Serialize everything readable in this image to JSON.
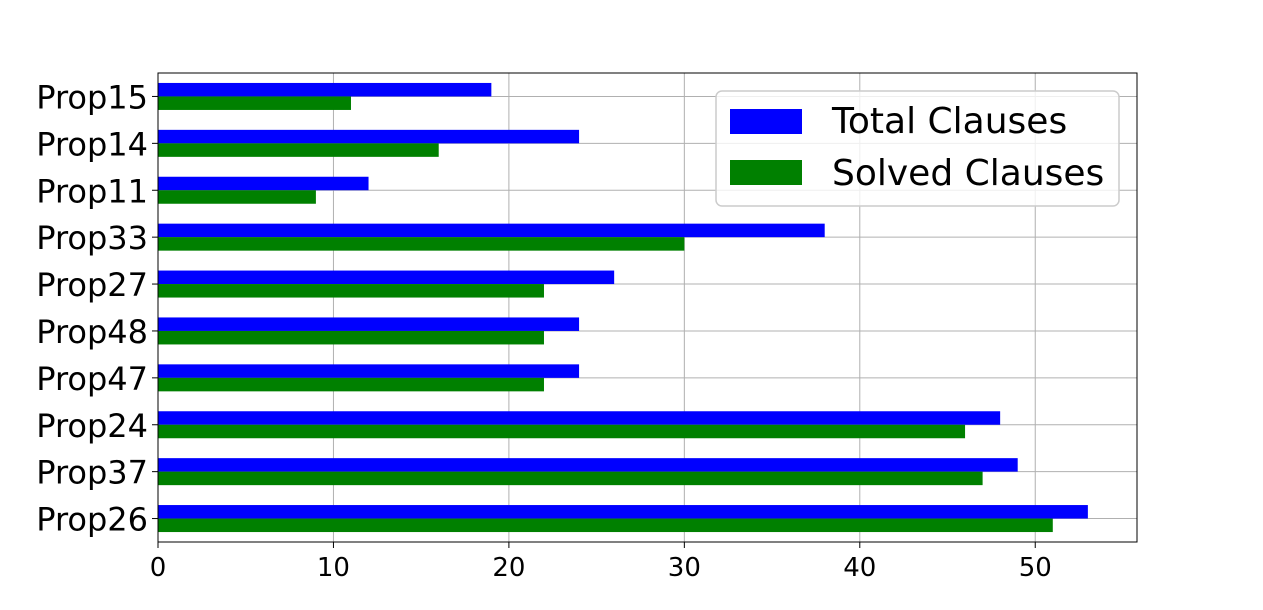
{
  "chart_data": {
    "type": "bar",
    "orientation": "horizontal",
    "categories": [
      "Prop15",
      "Prop14",
      "Prop11",
      "Prop33",
      "Prop27",
      "Prop48",
      "Prop47",
      "Prop24",
      "Prop37",
      "Prop26"
    ],
    "series": [
      {
        "name": "Total Clauses",
        "color": "#0000ff",
        "values": [
          19,
          24,
          12,
          38,
          26,
          24,
          24,
          48,
          49,
          53
        ]
      },
      {
        "name": "Solved Clauses",
        "color": "#008000",
        "values": [
          11,
          16,
          9,
          30,
          22,
          22,
          22,
          46,
          47,
          51
        ]
      }
    ],
    "title": "",
    "xlabel": "",
    "ylabel": "",
    "xlim": [
      0,
      55.8
    ],
    "xticks": [
      "0",
      "10",
      "20",
      "30",
      "40",
      "50"
    ],
    "grid": true,
    "legend": {
      "position": "top-right",
      "entries": [
        "Total Clauses",
        "Solved Clauses"
      ]
    }
  }
}
